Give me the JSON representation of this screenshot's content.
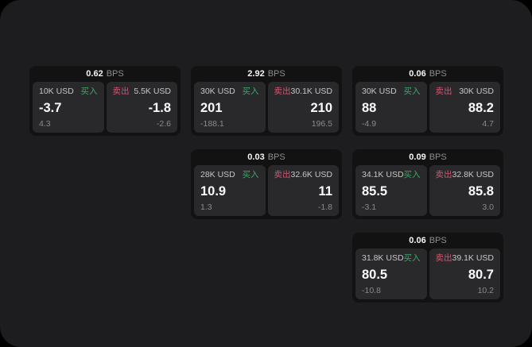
{
  "labels": {
    "bps_suffix": "BPS",
    "buy_label": "买入",
    "sell_label": "卖出"
  },
  "colors": {
    "surface_bg": "#1d1d1f",
    "card_bg": "#121212",
    "panel_bg": "#29292b",
    "buy_green": "#3ea76a",
    "sell_red": "#d25570",
    "value_white": "#fafafa",
    "muted_gray": "#8a8a8a"
  },
  "cards": [
    {
      "bps": "0.62",
      "col": 1,
      "row": 1,
      "buy": {
        "size": "10K USD",
        "value": "-3.7",
        "sub": "4.3"
      },
      "sell": {
        "size": "5.5K USD",
        "value": "-1.8",
        "sub": "-2.6"
      }
    },
    {
      "bps": "2.92",
      "col": 2,
      "row": 1,
      "buy": {
        "size": "30K USD",
        "value": "201",
        "sub": "-188.1"
      },
      "sell": {
        "size": "30.1K USD",
        "value": "210",
        "sub": "196.5"
      }
    },
    {
      "bps": "0.06",
      "col": 3,
      "row": 1,
      "buy": {
        "size": "30K USD",
        "value": "88",
        "sub": "-4.9"
      },
      "sell": {
        "size": "30K USD",
        "value": "88.2",
        "sub": "4.7"
      }
    },
    {
      "bps": "0.03",
      "col": 2,
      "row": 2,
      "buy": {
        "size": "28K USD",
        "value": "10.9",
        "sub": "1.3"
      },
      "sell": {
        "size": "32.6K USD",
        "value": "11",
        "sub": "-1.8"
      }
    },
    {
      "bps": "0.09",
      "col": 3,
      "row": 2,
      "buy": {
        "size": "34.1K USD",
        "value": "85.5",
        "sub": "-3.1"
      },
      "sell": {
        "size": "32.8K USD",
        "value": "85.8",
        "sub": "3.0"
      }
    },
    {
      "bps": "0.06",
      "col": 3,
      "row": 3,
      "buy": {
        "size": "31.8K USD",
        "value": "80.5",
        "sub": "-10.8"
      },
      "sell": {
        "size": "39.1K USD",
        "value": "80.7",
        "sub": "10.2"
      }
    }
  ]
}
